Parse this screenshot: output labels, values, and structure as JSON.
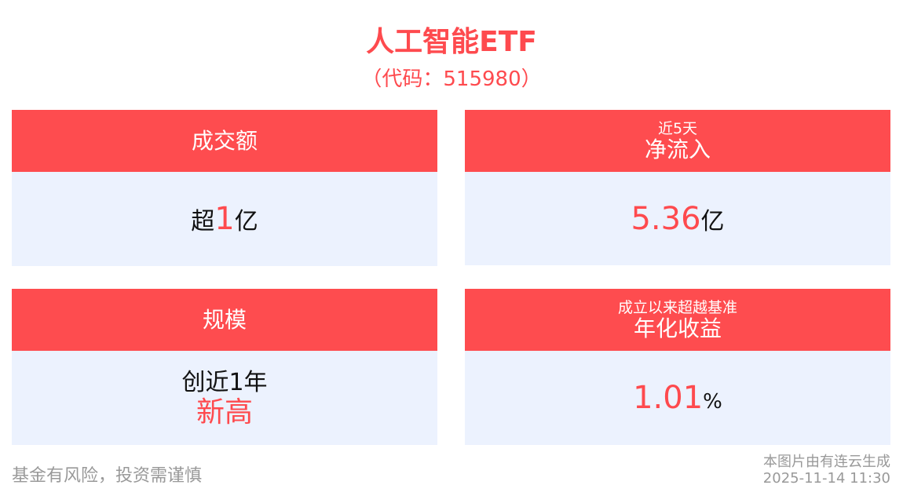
{
  "title": "人工智能ETF",
  "code": "（代码：515980）",
  "cards": [
    {
      "label": "成交额",
      "value_prefix": "超",
      "value": "1",
      "value_suffix": "亿"
    },
    {
      "sublabel": "近5天",
      "label": "净流入",
      "value": "5.36",
      "value_suffix": "亿"
    },
    {
      "label": "规模",
      "value_prefix": "创近1年",
      "value": "新高"
    },
    {
      "sublabel": "成立以来超越基准",
      "label": "年化收益",
      "value": "1.01",
      "value_suffix": "%"
    }
  ],
  "footer": {
    "disclaimer": "基金有风险，投资需谨慎",
    "source": "本图片由有连云生成",
    "timestamp": "2025-11-14 11:30"
  },
  "colors": {
    "accent": "#fe4c4f",
    "card_bg": "#ecf2fe"
  }
}
